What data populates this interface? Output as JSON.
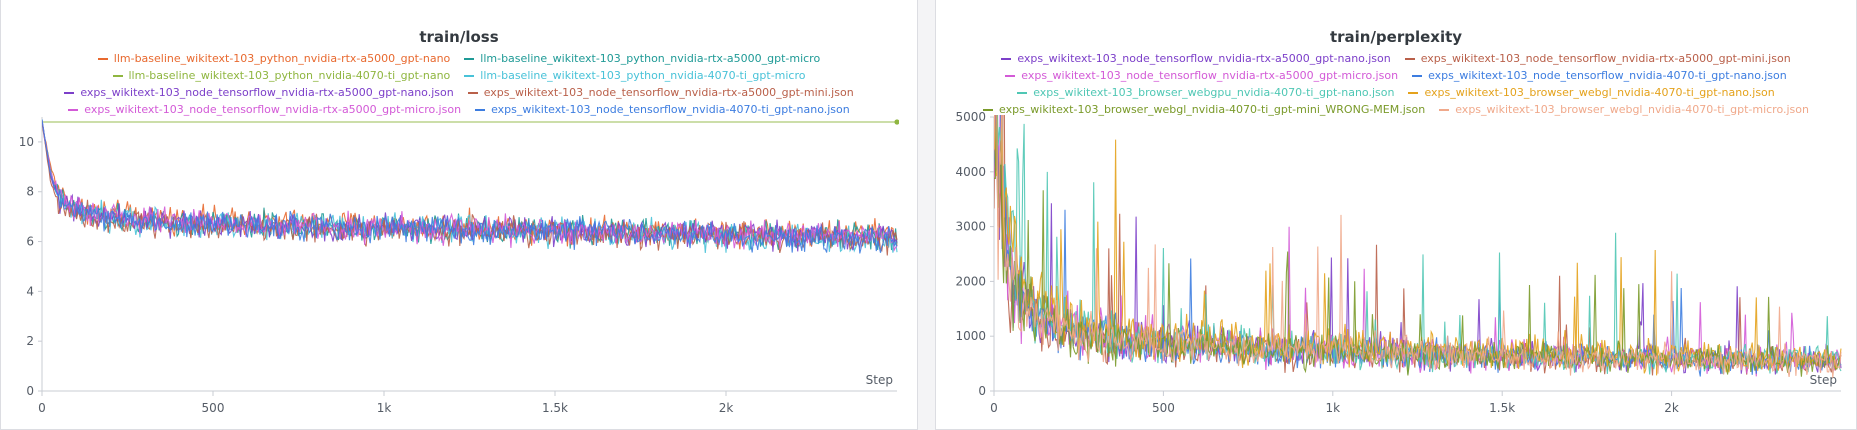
{
  "charts": [
    {
      "id": "loss",
      "title": "train/loss",
      "xlabel": "Step",
      "legend_rows": [
        [
          0,
          1
        ],
        [
          2,
          3
        ],
        [
          4,
          5
        ],
        [
          6,
          7
        ]
      ],
      "series": [
        {
          "name": "llm-baseline_wikitext-103_python_nvidia-rtx-a5000_gpt-nano",
          "color": "#e8692f"
        },
        {
          "name": "llm-baseline_wikitext-103_python_nvidia-rtx-a5000_gpt-micro",
          "color": "#1f9a96"
        },
        {
          "name": "llm-baseline_wikitext-103_python_nvidia-4070-ti_gpt-nano",
          "color": "#8fb640"
        },
        {
          "name": "llm-baseline_wikitext-103_python_nvidia-4070-ti_gpt-micro",
          "color": "#48c2d8"
        },
        {
          "name": "exps_wikitext-103_node_tensorflow_nvidia-rtx-a5000_gpt-nano.json",
          "color": "#7c3fc9"
        },
        {
          "name": "exps_wikitext-103_node_tensorflow_nvidia-rtx-a5000_gpt-mini.json",
          "color": "#b9604a"
        },
        {
          "name": "exps_wikitext-103_node_tensorflow_nvidia-rtx-a5000_gpt-micro.json",
          "color": "#d35ad7"
        },
        {
          "name": "exps_wikitext-103_node_tensorflow_nvidia-4070-ti_gpt-nano.json",
          "color": "#3d7de0"
        }
      ],
      "xticks": [
        "0",
        "500",
        "1k",
        "1.5k",
        "2k"
      ],
      "yticks": [
        "0",
        "2",
        "4",
        "6",
        "8",
        "10"
      ]
    },
    {
      "id": "ppl",
      "title": "train/perplexity",
      "xlabel": "Step",
      "legend_rows": [
        [
          0,
          1
        ],
        [
          2,
          3
        ],
        [
          4,
          5
        ],
        [
          6,
          7
        ]
      ],
      "series": [
        {
          "name": "exps_wikitext-103_node_tensorflow_nvidia-rtx-a5000_gpt-nano.json",
          "color": "#7c3fc9"
        },
        {
          "name": "exps_wikitext-103_node_tensorflow_nvidia-rtx-a5000_gpt-mini.json",
          "color": "#b9604a"
        },
        {
          "name": "exps_wikitext-103_node_tensorflow_nvidia-rtx-a5000_gpt-micro.json",
          "color": "#d35ad7"
        },
        {
          "name": "exps_wikitext-103_node_tensorflow_nvidia-4070-ti_gpt-nano.json",
          "color": "#3d7de0"
        },
        {
          "name": "exps_wikitext-103_browser_webgpu_nvidia-4070-ti_gpt-nano.json",
          "color": "#4fc7b4"
        },
        {
          "name": "exps_wikitext-103_browser_webgl_nvidia-4070-ti_gpt-nano.json",
          "color": "#e4a21c"
        },
        {
          "name": "exps_wikitext-103_browser_webgl_nvidia-4070-ti_gpt-mini_WRONG-MEM.json",
          "color": "#7a9a2a"
        },
        {
          "name": "exps_wikitext-103_browser_webgl_nvidia-4070-ti_gpt-micro.json",
          "color": "#f0a98b"
        }
      ],
      "xticks": [
        "0",
        "500",
        "1k",
        "1.5k",
        "2k"
      ],
      "yticks": [
        "0",
        "1000",
        "2000",
        "3000",
        "4000",
        "5000"
      ]
    }
  ],
  "chart_data": [
    {
      "type": "line",
      "title": "train/loss",
      "xlabel": "Step",
      "ylabel": "",
      "xlim": [
        0,
        2500
      ],
      "ylim": [
        0,
        11
      ],
      "grid": false,
      "legend_position": "top",
      "series": [
        {
          "name": "llm-baseline_wikitext-103_python_nvidia-rtx-a5000_gpt-nano",
          "x": [
            0,
            25,
            50,
            100,
            200,
            400,
            800,
            1200,
            1600,
            2000,
            2500
          ],
          "y": [
            10.8,
            9.0,
            8.0,
            7.4,
            7.1,
            6.9,
            6.7,
            6.6,
            6.5,
            6.4,
            6.3
          ]
        },
        {
          "name": "llm-baseline_wikitext-103_python_nvidia-rtx-a5000_gpt-micro",
          "x": [
            0,
            25,
            50,
            100,
            200,
            400,
            800,
            1200,
            1600,
            2000,
            2500
          ],
          "y": [
            10.8,
            8.8,
            7.7,
            7.2,
            6.9,
            6.7,
            6.6,
            6.5,
            6.4,
            6.3,
            6.2
          ]
        },
        {
          "name": "llm-baseline_wikitext-103_python_nvidia-4070-ti_gpt-nano",
          "x": [
            0,
            500,
            1000,
            1500,
            2000,
            2500
          ],
          "y": [
            10.8,
            10.8,
            10.8,
            10.8,
            10.8,
            10.8
          ]
        },
        {
          "name": "llm-baseline_wikitext-103_python_nvidia-4070-ti_gpt-micro",
          "x": [
            0,
            25,
            50,
            100,
            200,
            400,
            800,
            1200,
            1600,
            2000,
            2500
          ],
          "y": [
            10.8,
            8.7,
            7.6,
            7.1,
            6.9,
            6.7,
            6.6,
            6.5,
            6.4,
            6.2,
            6.0
          ]
        },
        {
          "name": "exps_wikitext-103_node_tensorflow_nvidia-rtx-a5000_gpt-nano.json",
          "x": [
            0,
            25,
            50,
            100,
            200,
            400,
            800,
            1200,
            1600,
            2000,
            2500
          ],
          "y": [
            10.8,
            8.6,
            7.6,
            7.2,
            7.0,
            6.8,
            6.6,
            6.5,
            6.4,
            6.3,
            6.2
          ]
        },
        {
          "name": "exps_wikitext-103_node_tensorflow_nvidia-rtx-a5000_gpt-mini.json",
          "x": [
            0,
            25,
            50,
            100,
            200,
            400,
            800,
            1200,
            1600,
            2000,
            2500
          ],
          "y": [
            10.8,
            8.4,
            7.5,
            7.1,
            6.9,
            6.7,
            6.5,
            6.4,
            6.3,
            6.2,
            6.1
          ]
        },
        {
          "name": "exps_wikitext-103_node_tensorflow_nvidia-rtx-a5000_gpt-micro.json",
          "x": [
            0,
            25,
            50,
            100,
            200,
            400,
            800,
            1200,
            1600,
            2000,
            2500
          ],
          "y": [
            10.8,
            8.8,
            7.8,
            7.3,
            7.0,
            6.8,
            6.6,
            6.5,
            6.4,
            6.3,
            6.2
          ]
        },
        {
          "name": "exps_wikitext-103_node_tensorflow_nvidia-4070-ti_gpt-nano.json",
          "x": [
            0,
            25,
            50,
            100,
            200,
            400,
            800,
            1200,
            1600,
            2000,
            2500
          ],
          "y": [
            10.8,
            8.7,
            7.7,
            7.2,
            6.9,
            6.7,
            6.6,
            6.5,
            6.4,
            6.2,
            6.0
          ]
        }
      ]
    },
    {
      "type": "line",
      "title": "train/perplexity",
      "xlabel": "Step",
      "ylabel": "",
      "xlim": [
        0,
        2500
      ],
      "ylim": [
        0,
        5000
      ],
      "grid": false,
      "legend_position": "top",
      "series": [
        {
          "name": "exps_wikitext-103_node_tensorflow_nvidia-rtx-a5000_gpt-nano.json",
          "x": [
            0,
            25,
            50,
            100,
            200,
            400,
            800,
            1200,
            1600,
            2000,
            2500
          ],
          "y": [
            5000,
            3500,
            2200,
            1500,
            1100,
            900,
            780,
            700,
            650,
            600,
            550
          ]
        },
        {
          "name": "exps_wikitext-103_node_tensorflow_nvidia-rtx-a5000_gpt-mini.json",
          "x": [
            0,
            25,
            50,
            100,
            200,
            400,
            800,
            1200,
            1600,
            2000,
            2500
          ],
          "y": [
            5000,
            3000,
            1900,
            1300,
            1000,
            850,
            720,
            650,
            600,
            560,
            520
          ]
        },
        {
          "name": "exps_wikitext-103_node_tensorflow_nvidia-rtx-a5000_gpt-micro.json",
          "x": [
            0,
            25,
            50,
            100,
            200,
            400,
            800,
            1200,
            1600,
            2000,
            2500
          ],
          "y": [
            5000,
            3300,
            2300,
            1600,
            1150,
            950,
            800,
            700,
            650,
            600,
            550
          ]
        },
        {
          "name": "exps_wikitext-103_node_tensorflow_nvidia-4070-ti_gpt-nano.json",
          "x": [
            0,
            25,
            50,
            100,
            200,
            400,
            800,
            1200,
            1600,
            2000,
            2500
          ],
          "y": [
            5000,
            3400,
            2300,
            1500,
            1100,
            900,
            760,
            680,
            620,
            580,
            540
          ]
        },
        {
          "name": "exps_wikitext-103_browser_webgpu_nvidia-4070-ti_gpt-nano.json",
          "x": [
            0,
            25,
            50,
            100,
            200,
            400,
            800,
            1200,
            1600,
            2000,
            2500
          ],
          "y": [
            5000,
            3600,
            2500,
            1700,
            1200,
            950,
            800,
            700,
            640,
            600,
            560
          ]
        },
        {
          "name": "exps_wikitext-103_browser_webgl_nvidia-4070-ti_gpt-nano.json",
          "x": [
            0,
            25,
            50,
            100,
            200,
            400,
            800,
            1200,
            1600,
            2000,
            2500
          ],
          "y": [
            5000,
            3800,
            2700,
            1800,
            1300,
            1000,
            850,
            760,
            700,
            650,
            600
          ]
        },
        {
          "name": "exps_wikitext-103_browser_webgl_nvidia-4070-ti_gpt-mini_WRONG-MEM.json",
          "x": [
            0,
            25,
            50,
            100,
            200,
            400,
            800,
            1200,
            1600,
            2000,
            2500
          ],
          "y": [
            5000,
            3200,
            2100,
            1400,
            1050,
            870,
            740,
            660,
            610,
            570,
            530
          ]
        },
        {
          "name": "exps_wikitext-103_browser_webgl_nvidia-4070-ti_gpt-micro.json",
          "x": [
            0,
            25,
            50,
            100,
            200,
            400,
            800,
            1200,
            1600,
            2000,
            2500
          ],
          "y": [
            5000,
            3300,
            2200,
            1500,
            1100,
            900,
            760,
            680,
            620,
            580,
            540
          ]
        }
      ]
    }
  ]
}
